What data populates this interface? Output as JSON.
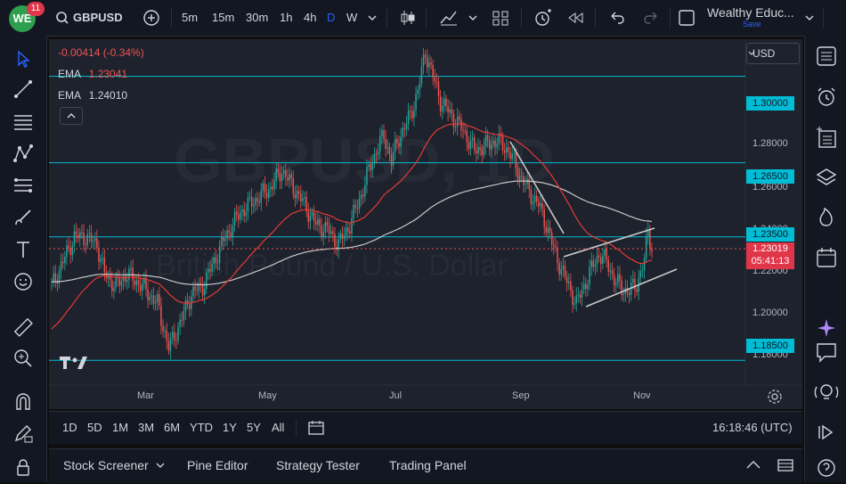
{
  "brand": {
    "logo_text": "WE",
    "badge_count": "11"
  },
  "toolbar": {
    "symbol": "GBPUSD",
    "intervals": [
      "5m",
      "15m",
      "30m",
      "1h",
      "4h",
      "D",
      "W"
    ],
    "active_interval": "D",
    "account_name": "Wealthy Educ...",
    "save_label": "Save"
  },
  "legend": {
    "change": "-0.00414 (-0.34%)",
    "ema1_label": "EMA",
    "ema1_value": "1.23041",
    "ema2_label": "EMA",
    "ema2_value": "1.24010"
  },
  "watermark": {
    "symbol": "GBPUSD, 1D",
    "name": "British Pound / U.S. Dollar"
  },
  "currency": "USD",
  "price_axis": {
    "labels": [
      "1.28000",
      "1.26000",
      "1.24000",
      "1.22000",
      "1.20000",
      "1.18000"
    ],
    "level_tags": [
      "1.30000",
      "1.26500",
      "1.23500",
      "1.18500"
    ],
    "current_price": "1.23019",
    "countdown": "05:41:13"
  },
  "time_axis": [
    "Mar",
    "May",
    "Jul",
    "Sep",
    "Nov"
  ],
  "ranges": [
    "1D",
    "5D",
    "1M",
    "3M",
    "6M",
    "YTD",
    "1Y",
    "5Y",
    "All"
  ],
  "clock": "16:18:46 (UTC)",
  "bottom_tabs": [
    "Stock Screener",
    "Pine Editor",
    "Strategy Tester",
    "Trading Panel"
  ],
  "colors": {
    "up": "#26a69a",
    "down": "#ef5350",
    "level": "#00bcd4",
    "ema_fast": "#e53935",
    "ema_slow": "#c8c8c8",
    "accent": "#2962ff"
  },
  "chart_data": {
    "type": "candlestick",
    "y_range": [
      1.175,
      1.315
    ],
    "horizontal_levels": [
      1.3,
      1.265,
      1.235,
      1.185
    ],
    "close_path": [
      [
        0,
        1.215
      ],
      [
        6,
        1.225
      ],
      [
        12,
        1.235
      ],
      [
        18,
        1.235
      ],
      [
        24,
        1.232
      ],
      [
        28,
        1.22
      ],
      [
        34,
        1.215
      ],
      [
        40,
        1.22
      ],
      [
        48,
        1.215
      ],
      [
        56,
        1.208
      ],
      [
        62,
        1.19
      ],
      [
        68,
        1.2
      ],
      [
        74,
        1.212
      ],
      [
        80,
        1.215
      ],
      [
        86,
        1.225
      ],
      [
        92,
        1.235
      ],
      [
        100,
        1.245
      ],
      [
        108,
        1.25
      ],
      [
        116,
        1.255
      ],
      [
        122,
        1.262
      ],
      [
        128,
        1.255
      ],
      [
        134,
        1.248
      ],
      [
        140,
        1.24
      ],
      [
        146,
        1.238
      ],
      [
        152,
        1.232
      ],
      [
        158,
        1.24
      ],
      [
        164,
        1.252
      ],
      [
        168,
        1.262
      ],
      [
        172,
        1.27
      ],
      [
        176,
        1.276
      ],
      [
        180,
        1.266
      ],
      [
        184,
        1.275
      ],
      [
        190,
        1.284
      ],
      [
        194,
        1.294
      ],
      [
        198,
        1.31
      ],
      [
        202,
        1.3
      ],
      [
        206,
        1.29
      ],
      [
        212,
        1.284
      ],
      [
        218,
        1.278
      ],
      [
        224,
        1.27
      ],
      [
        230,
        1.272
      ],
      [
        236,
        1.274
      ],
      [
        242,
        1.27
      ],
      [
        248,
        1.26
      ],
      [
        254,
        1.252
      ],
      [
        258,
        1.248
      ],
      [
        262,
        1.24
      ],
      [
        266,
        1.23
      ],
      [
        270,
        1.222
      ],
      [
        274,
        1.215
      ],
      [
        278,
        1.208
      ],
      [
        282,
        1.215
      ],
      [
        286,
        1.222
      ],
      [
        290,
        1.228
      ],
      [
        294,
        1.225
      ],
      [
        298,
        1.218
      ],
      [
        302,
        1.214
      ],
      [
        306,
        1.213
      ],
      [
        310,
        1.216
      ],
      [
        314,
        1.225
      ],
      [
        316,
        1.238
      ],
      [
        318,
        1.23
      ]
    ]
  }
}
